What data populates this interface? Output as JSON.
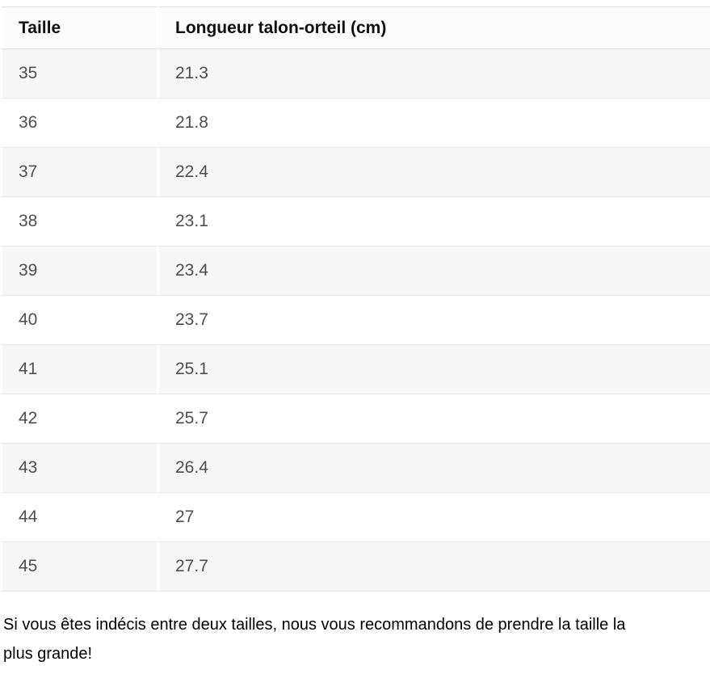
{
  "table": {
    "columns": [
      "Taille",
      "Longueur talon-orteil (cm)"
    ],
    "rows": [
      {
        "taille": "35",
        "longueur": "21.3"
      },
      {
        "taille": "36",
        "longueur": "21.8"
      },
      {
        "taille": "37",
        "longueur": "22.4"
      },
      {
        "taille": "38",
        "longueur": "23.1"
      },
      {
        "taille": "39",
        "longueur": "23.4"
      },
      {
        "taille": "40",
        "longueur": "23.7"
      },
      {
        "taille": "41",
        "longueur": "25.1"
      },
      {
        "taille": "42",
        "longueur": "25.7"
      },
      {
        "taille": "43",
        "longueur": "26.4"
      },
      {
        "taille": "44",
        "longueur": "27"
      },
      {
        "taille": "45",
        "longueur": "27.7"
      }
    ]
  },
  "note": {
    "line1": "Si vous êtes indécis entre deux tailles, nous vous recommandons de prendre la taille la",
    "line2": "plus grande!"
  },
  "colors": {
    "stripe_row_bg": "#f7f7f7",
    "row_border": "#e7e7e7",
    "header_top_border": "#e3e3e3",
    "header_bottom_border": "#e0e0e0",
    "data_text": "#4f4f4f",
    "header_text": "#101010",
    "note_text": "#000000"
  }
}
